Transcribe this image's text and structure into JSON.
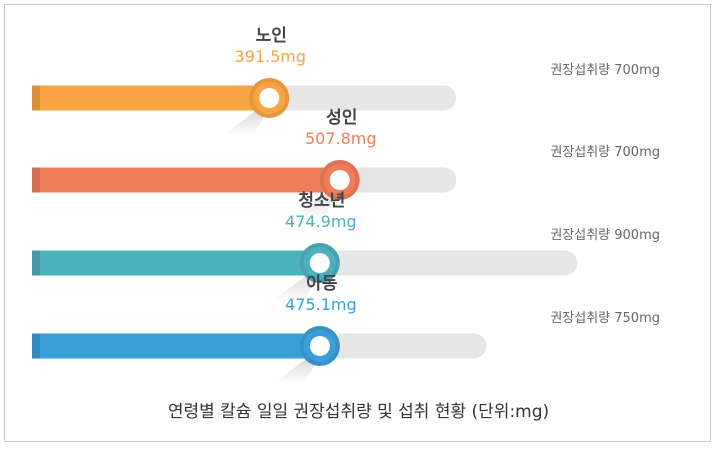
{
  "chart_data": {
    "type": "bar",
    "orientation": "horizontal",
    "title": "연령별 칼슘 일일 권장섭취량 및 섭취 현황 (단위:mg)",
    "unit": "mg",
    "categories": [
      "노인",
      "성인",
      "청소년",
      "아동"
    ],
    "series": [
      {
        "values": [
          391.5,
          507.8,
          474.9,
          475.1
        ]
      },
      {
        "values": [
          700,
          700,
          900,
          750
        ]
      }
    ],
    "value_labels": [
      "391.5mg",
      "507.8mg",
      "474.9mg",
      "475.1mg"
    ],
    "recommended_labels": [
      "권장섭취량 700mg",
      "권장섭취량 700mg",
      "권장섭취량 900mg",
      "권장섭취량 750mg"
    ],
    "colors": [
      "#f9a443",
      "#ef7d5b",
      "#4cb1bd",
      "#3a9fd9"
    ],
    "track_color": "#e6e6e6",
    "grid": false
  }
}
